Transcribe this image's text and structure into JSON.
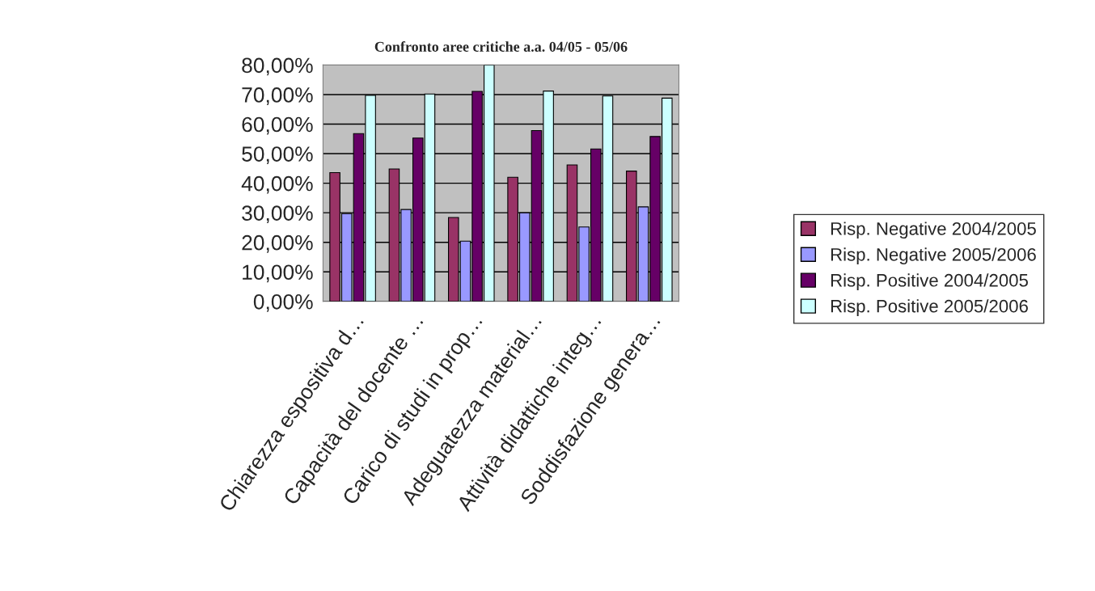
{
  "chart_data": {
    "type": "bar",
    "title": "Confronto aree critiche a.a. 04/05 - 05/06",
    "categories": [
      "Chiarezza espositiva d…",
      "Capacità del docente …",
      "Carico di studi in prop…",
      "Adeguatezza material…",
      "Attività didattiche integ…",
      "Soddisfazione genera…"
    ],
    "series": [
      {
        "name": "Risp. Negative 2004/2005",
        "color": "#993366",
        "values": [
          43.6,
          44.8,
          28.4,
          42.0,
          46.2,
          44.1
        ]
      },
      {
        "name": "Risp. Negative 2005/2006",
        "color": "#9999ff",
        "values": [
          29.7,
          31.1,
          20.4,
          30.0,
          25.2,
          32.0
        ]
      },
      {
        "name": "Risp. Positive 2004/2005",
        "color": "#660066",
        "values": [
          56.8,
          55.3,
          71.1,
          57.8,
          51.6,
          55.8
        ]
      },
      {
        "name": "Risp. Positive 2005/2006",
        "color": "#ccffff",
        "values": [
          69.7,
          70.2,
          80.0,
          71.2,
          69.5,
          68.8
        ]
      }
    ],
    "ylim": [
      0,
      80
    ],
    "yticks": [
      {
        "value": 0,
        "label": "0,00%"
      },
      {
        "value": 10,
        "label": "10,00%"
      },
      {
        "value": 20,
        "label": "20,00%"
      },
      {
        "value": 30,
        "label": "30,00%"
      },
      {
        "value": 40,
        "label": "40,00%"
      },
      {
        "value": 50,
        "label": "50,00%"
      },
      {
        "value": 60,
        "label": "60,00%"
      },
      {
        "value": 70,
        "label": "70,00%"
      },
      {
        "value": 80,
        "label": "80,00%"
      }
    ],
    "grid": "y",
    "legend": "right"
  }
}
